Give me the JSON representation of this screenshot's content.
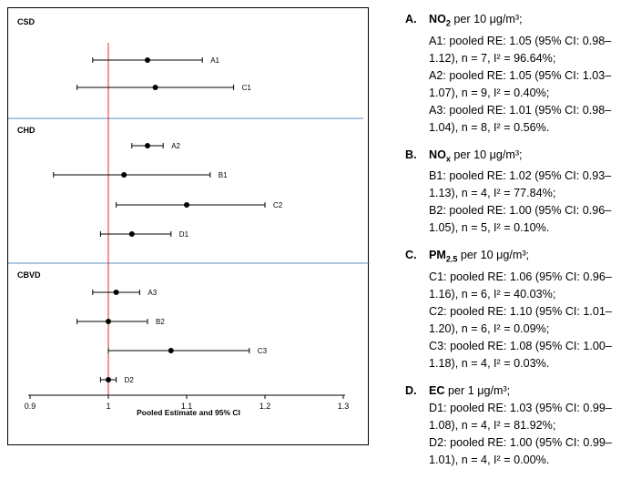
{
  "chart_data": {
    "type": "forest",
    "xlabel": "Pooled Estimate and 95% CI",
    "xlim": [
      0.9,
      1.3
    ],
    "xticks": [
      "0.9",
      "1",
      "1.1",
      "1.2",
      "1.3"
    ],
    "reference_line": 1,
    "colors": {
      "reference_line": "#e8261e",
      "separator": "#5b8fc7",
      "marker": "#000000"
    },
    "groups": [
      {
        "name": "CSD",
        "entries": [
          {
            "label": "A1",
            "estimate": 1.05,
            "ci_low": 0.98,
            "ci_high": 1.12
          },
          {
            "label": "C1",
            "estimate": 1.06,
            "ci_low": 0.96,
            "ci_high": 1.16
          }
        ]
      },
      {
        "name": "CHD",
        "entries": [
          {
            "label": "A2",
            "estimate": 1.05,
            "ci_low": 1.03,
            "ci_high": 1.07
          },
          {
            "label": "B1",
            "estimate": 1.02,
            "ci_low": 0.93,
            "ci_high": 1.13
          },
          {
            "label": "C2",
            "estimate": 1.1,
            "ci_low": 1.01,
            "ci_high": 1.2
          },
          {
            "label": "D1",
            "estimate": 1.03,
            "ci_low": 0.99,
            "ci_high": 1.08
          }
        ]
      },
      {
        "name": "CBVD",
        "entries": [
          {
            "label": "A3",
            "estimate": 1.01,
            "ci_low": 0.98,
            "ci_high": 1.04
          },
          {
            "label": "B2",
            "estimate": 1.0,
            "ci_low": 0.96,
            "ci_high": 1.05
          },
          {
            "label": "C3",
            "estimate": 1.08,
            "ci_low": 1.0,
            "ci_high": 1.18
          },
          {
            "label": "D2",
            "estimate": 1.0,
            "ci_low": 0.99,
            "ci_high": 1.01
          }
        ]
      }
    ]
  },
  "legend": [
    {
      "letter": "A.",
      "pollutant": "NO",
      "sub": "2",
      "unit": " per 10 μg/m³;",
      "lines": [
        "A1: pooled RE: 1.05 (95% CI: 0.98–",
        "1.12), n = 7, I² = 96.64%;",
        "A2: pooled RE: 1.05 (95% CI: 1.03–",
        "1.07), n = 9, I² = 0.40%;",
        "A3: pooled RE: 1.01 (95% CI: 0.98–",
        "1.04), n = 8, I² = 0.56%."
      ]
    },
    {
      "letter": "B.",
      "pollutant": "NO",
      "sub": "x",
      "unit": " per 10 μg/m³;",
      "lines": [
        "B1: pooled RE: 1.02 (95% CI: 0.93–",
        "1.13), n = 4, I² = 77.84%;",
        "B2: pooled RE: 1.00 (95% CI: 0.96–",
        "1.05), n = 5, I² = 0.10%."
      ]
    },
    {
      "letter": "C.",
      "pollutant": "PM",
      "sub": "2.5",
      "unit": " per 10 μg/m³;",
      "lines": [
        "C1: pooled RE: 1.06 (95% CI: 0.96–",
        "1.16), n = 6, I² = 40.03%;",
        "C2: pooled RE: 1.10 (95% CI: 1.01–",
        "1.20), n = 6, I² = 0.09%;",
        "C3: pooled RE: 1.08 (95% CI: 1.00–",
        "1.18), n = 4, I² = 0.03%."
      ]
    },
    {
      "letter": "D.",
      "pollutant": "EC",
      "sub": "",
      "unit": " per 1 μg/m³;",
      "lines": [
        "D1: pooled RE: 1.03 (95% CI: 0.99–",
        "1.08), n = 4, I² = 81.92%;",
        "D2: pooled RE: 1.00 (95% CI: 0.99–",
        "1.01), n = 4, I² = 0.00%."
      ]
    }
  ]
}
